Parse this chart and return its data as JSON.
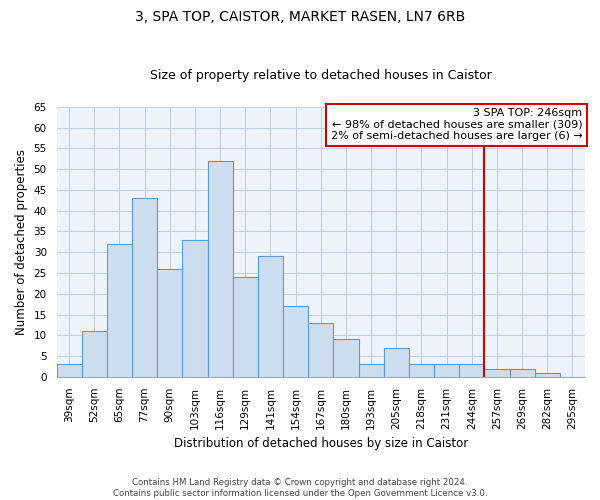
{
  "title": "3, SPA TOP, CAISTOR, MARKET RASEN, LN7 6RB",
  "subtitle": "Size of property relative to detached houses in Caistor",
  "xlabel": "Distribution of detached houses by size in Caistor",
  "ylabel": "Number of detached properties",
  "categories": [
    "39sqm",
    "52sqm",
    "65sqm",
    "77sqm",
    "90sqm",
    "103sqm",
    "116sqm",
    "129sqm",
    "141sqm",
    "154sqm",
    "167sqm",
    "180sqm",
    "193sqm",
    "205sqm",
    "218sqm",
    "231sqm",
    "244sqm",
    "257sqm",
    "269sqm",
    "282sqm",
    "295sqm"
  ],
  "values": [
    3,
    11,
    32,
    43,
    26,
    33,
    52,
    24,
    29,
    17,
    13,
    9,
    3,
    7,
    3,
    3,
    3,
    2,
    2,
    1,
    0
  ],
  "bar_color": "#ccddf0",
  "bar_edge_color": "#5b9bd5",
  "ylim": [
    0,
    65
  ],
  "yticks": [
    0,
    5,
    10,
    15,
    20,
    25,
    30,
    35,
    40,
    45,
    50,
    55,
    60,
    65
  ],
  "vline_x_index": 16,
  "vline_color": "#cc0000",
  "annotation_title": "3 SPA TOP: 246sqm",
  "annotation_line1": "← 98% of detached houses are smaller (309)",
  "annotation_line2": "2% of semi-detached houses are larger (6) →",
  "annotation_box_edge": "#cc0000",
  "footnote1": "Contains HM Land Registry data © Crown copyright and database right 2024.",
  "footnote2": "Contains public sector information licensed under the Open Government Licence v3.0.",
  "background_color": "#ffffff",
  "plot_bg_color": "#eef3fa",
  "grid_color": "#c0cfe0",
  "title_fontsize": 10,
  "subtitle_fontsize": 9,
  "axis_label_fontsize": 8.5,
  "tick_fontsize": 7.5,
  "annotation_fontsize": 8
}
